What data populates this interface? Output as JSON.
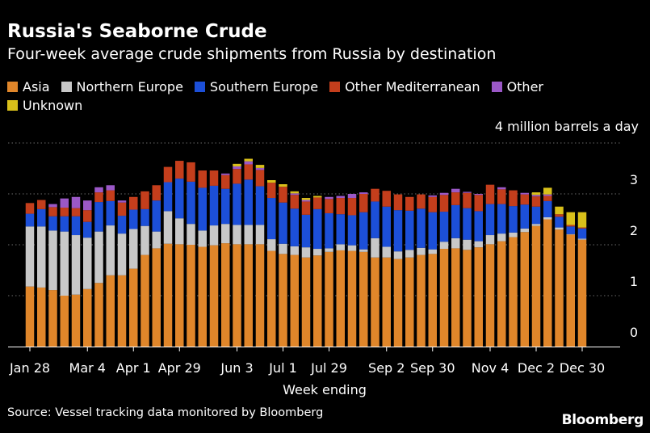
{
  "chart_data": {
    "type": "bar",
    "stacked": true,
    "title": "Russia's Seaborne Crude",
    "subtitle": "Four-week average crude shipments from Russia by destination",
    "ylabel": "4 million barrels a day",
    "xlabel": "Week ending",
    "ylim": [
      0,
      4
    ],
    "yticks": [
      0,
      1,
      2,
      3
    ],
    "grid": true,
    "legend_position": "top-left",
    "x_tick_labels": [
      "Jan 28",
      "Mar 4",
      "Apr 1",
      "Apr 29",
      "Jun 3",
      "Jul 1",
      "Jul 29",
      "Sep 2",
      "Sep 30",
      "Nov 4",
      "Dec 2",
      "Dec 30"
    ],
    "x_tick_indices": [
      0,
      5,
      9,
      13,
      18,
      22,
      26,
      31,
      35,
      40,
      44,
      48
    ],
    "series": [
      {
        "name": "Asia",
        "color": "#e0862a",
        "values": [
          1.18,
          1.16,
          1.11,
          1.0,
          1.02,
          1.13,
          1.25,
          1.4,
          1.4,
          1.53,
          1.8,
          1.93,
          2.02,
          2.01,
          2.0,
          1.96,
          1.99,
          2.03,
          2.01,
          2.01,
          2.01,
          1.88,
          1.82,
          1.8,
          1.75,
          1.79,
          1.86,
          1.89,
          1.88,
          1.86,
          1.75,
          1.75,
          1.72,
          1.75,
          1.8,
          1.82,
          1.92,
          1.93,
          1.9,
          1.95,
          2.01,
          2.07,
          2.15,
          2.25,
          2.37,
          2.5,
          2.3,
          2.2,
          2.1
        ]
      },
      {
        "name": "Northern Europe",
        "color": "#c8c8c8",
        "values": [
          1.18,
          1.2,
          1.17,
          1.26,
          1.17,
          1.01,
          1.01,
          0.98,
          0.82,
          0.78,
          0.57,
          0.33,
          0.64,
          0.51,
          0.41,
          0.32,
          0.39,
          0.38,
          0.38,
          0.38,
          0.38,
          0.23,
          0.2,
          0.17,
          0.2,
          0.13,
          0.07,
          0.12,
          0.11,
          0.05,
          0.38,
          0.21,
          0.15,
          0.15,
          0.14,
          0.09,
          0.14,
          0.2,
          0.2,
          0.12,
          0.18,
          0.15,
          0.09,
          0.07,
          0.04,
          0.04,
          0.04,
          0.01,
          0.02
        ]
      },
      {
        "name": "Southern Europe",
        "color": "#1c4fd8",
        "values": [
          0.25,
          0.34,
          0.28,
          0.3,
          0.37,
          0.31,
          0.58,
          0.48,
          0.35,
          0.38,
          0.33,
          0.61,
          0.57,
          0.78,
          0.83,
          0.84,
          0.78,
          0.69,
          0.81,
          0.89,
          0.76,
          0.81,
          0.81,
          0.74,
          0.64,
          0.78,
          0.69,
          0.59,
          0.59,
          0.73,
          0.72,
          0.79,
          0.81,
          0.77,
          0.77,
          0.73,
          0.59,
          0.65,
          0.62,
          0.59,
          0.61,
          0.58,
          0.52,
          0.47,
          0.34,
          0.32,
          0.21,
          0.15,
          0.2
        ]
      },
      {
        "name": "Other Mediterranean",
        "color": "#c43e1c",
        "values": [
          0.21,
          0.18,
          0.18,
          0.17,
          0.16,
          0.23,
          0.19,
          0.21,
          0.26,
          0.25,
          0.35,
          0.3,
          0.3,
          0.35,
          0.38,
          0.34,
          0.3,
          0.27,
          0.29,
          0.3,
          0.32,
          0.3,
          0.31,
          0.27,
          0.26,
          0.23,
          0.28,
          0.32,
          0.34,
          0.36,
          0.25,
          0.31,
          0.31,
          0.27,
          0.28,
          0.3,
          0.33,
          0.25,
          0.3,
          0.32,
          0.38,
          0.29,
          0.31,
          0.2,
          0.2,
          0.1,
          0.05,
          0.03,
          0.02
        ]
      },
      {
        "name": "Other",
        "color": "#9b58c7",
        "values": [
          0.0,
          0.0,
          0.06,
          0.18,
          0.22,
          0.19,
          0.1,
          0.1,
          0.04,
          0.0,
          0.0,
          0.0,
          0.0,
          0.0,
          0.0,
          0.0,
          0.0,
          0.03,
          0.05,
          0.06,
          0.04,
          0.0,
          0.0,
          0.03,
          0.03,
          0.0,
          0.04,
          0.04,
          0.08,
          0.03,
          0.0,
          0.0,
          0.0,
          0.0,
          0.0,
          0.03,
          0.04,
          0.07,
          0.02,
          0.02,
          0.0,
          0.04,
          0.0,
          0.03,
          0.03,
          0.03,
          0.0,
          0.0,
          0.0
        ]
      },
      {
        "name": "Unknown",
        "color": "#d9c01a",
        "values": [
          0.0,
          0.0,
          0.0,
          0.0,
          0.0,
          0.0,
          0.0,
          0.0,
          0.0,
          0.0,
          0.0,
          0.0,
          0.0,
          0.0,
          0.0,
          0.0,
          0.0,
          0.0,
          0.05,
          0.05,
          0.06,
          0.05,
          0.05,
          0.04,
          0.04,
          0.03,
          0.0,
          0.0,
          0.0,
          0.0,
          0.0,
          0.0,
          0.0,
          0.0,
          0.0,
          0.0,
          0.0,
          0.0,
          0.0,
          0.0,
          0.0,
          0.0,
          0.0,
          0.0,
          0.05,
          0.13,
          0.15,
          0.25,
          0.3
        ]
      }
    ]
  },
  "source": "Source: Vessel tracking data monitored by Bloomberg",
  "brand": "Bloomberg"
}
